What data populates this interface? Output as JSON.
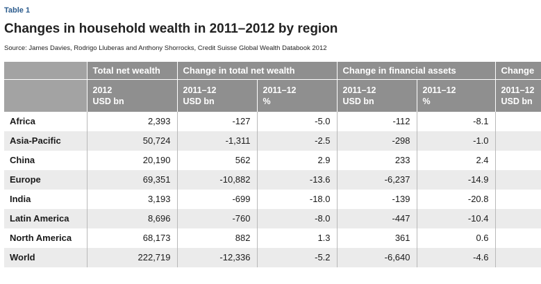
{
  "table_label": "Table 1",
  "title": "Changes in household wealth in 2011–2012 by region",
  "source": "Source: James Davies, Rodrigo Lluberas and Anthony Shorrocks, Credit Suisse Global Wealth Databook 2012",
  "header": {
    "groups": [
      "",
      "Total net wealth",
      "Change in total net wealth",
      "Change in financial assets",
      "Change"
    ],
    "sub": [
      {
        "line1": "",
        "line2": ""
      },
      {
        "line1": "2012",
        "line2": "USD bn"
      },
      {
        "line1": "2011–12",
        "line2": "USD bn"
      },
      {
        "line1": "2011–12",
        "line2": "%"
      },
      {
        "line1": "2011–12",
        "line2": "USD bn"
      },
      {
        "line1": "2011–12",
        "line2": "%"
      },
      {
        "line1": "2011–12",
        "line2": "USD bn"
      }
    ]
  },
  "rows": [
    {
      "region": "Africa",
      "values": [
        "2,393",
        "-127",
        "-5.0",
        "-112",
        "-8.1",
        ""
      ]
    },
    {
      "region": "Asia-Pacific",
      "values": [
        "50,724",
        "-1,311",
        "-2.5",
        "-298",
        "-1.0",
        ""
      ]
    },
    {
      "region": "China",
      "values": [
        "20,190",
        "562",
        "2.9",
        "233",
        "2.4",
        ""
      ]
    },
    {
      "region": "Europe",
      "values": [
        "69,351",
        "-10,882",
        "-13.6",
        "-6,237",
        "-14.9",
        ""
      ]
    },
    {
      "region": "India",
      "values": [
        "3,193",
        "-699",
        "-18.0",
        "-139",
        "-20.8",
        ""
      ]
    },
    {
      "region": "Latin America",
      "values": [
        "8,696",
        "-760",
        "-8.0",
        "-447",
        "-10.4",
        ""
      ]
    },
    {
      "region": "North America",
      "values": [
        "68,173",
        "882",
        "1.3",
        "361",
        "0.6",
        ""
      ]
    },
    {
      "region": "World",
      "values": [
        "222,719",
        "-12,336",
        "-5.2",
        "-6,640",
        "-4.6",
        ""
      ]
    }
  ]
}
